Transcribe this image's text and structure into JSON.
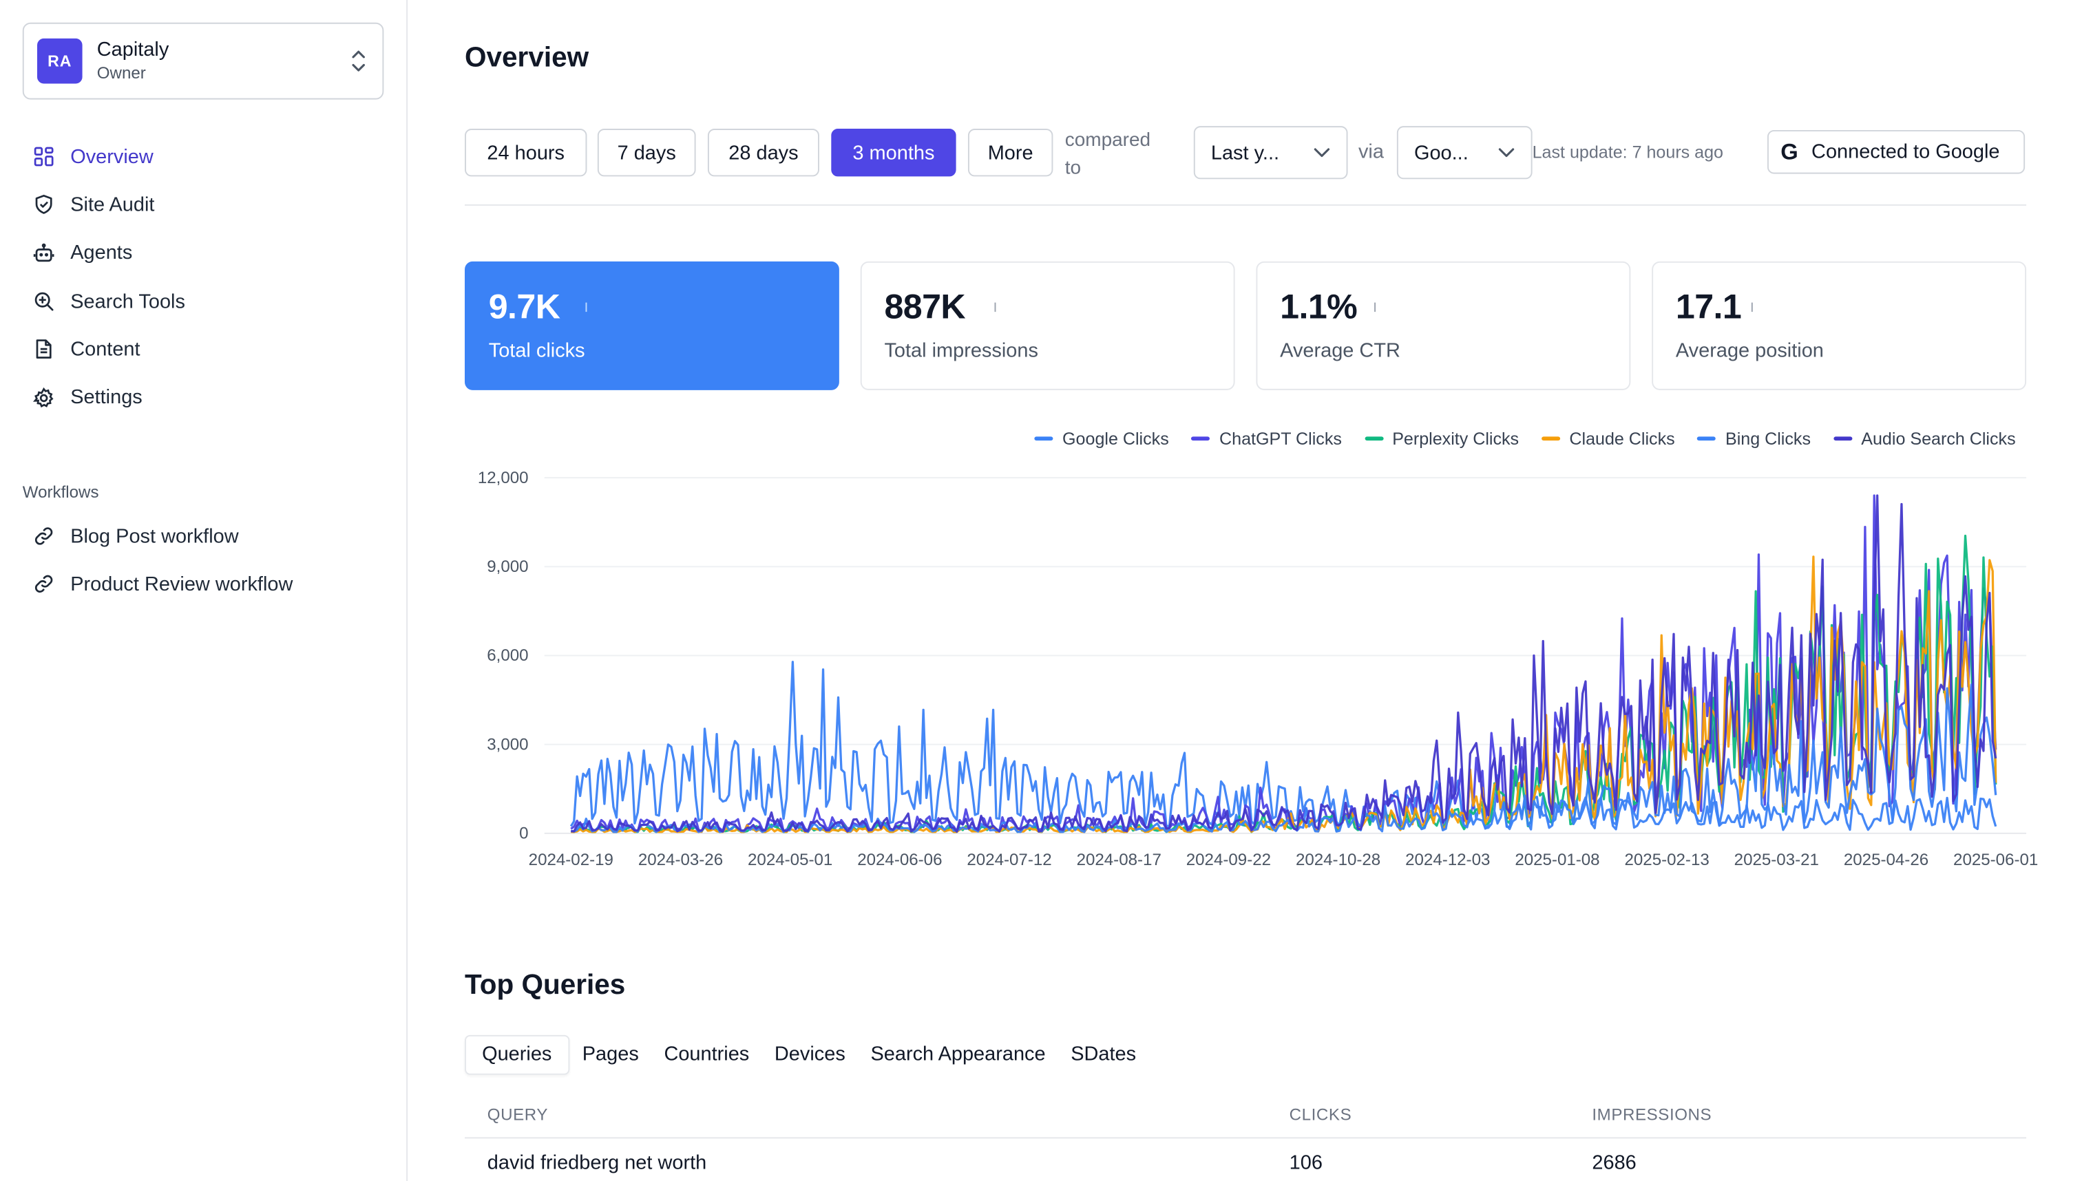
{
  "org": {
    "initials": "RA",
    "name": "Capitaly",
    "role": "Owner"
  },
  "nav": [
    {
      "label": "Overview",
      "icon": "grid-icon"
    },
    {
      "label": "Site Audit",
      "icon": "shield-check-icon"
    },
    {
      "label": "Agents",
      "icon": "robot-icon"
    },
    {
      "label": "Search Tools",
      "icon": "search-zoom-icon"
    },
    {
      "label": "Content",
      "icon": "document-icon"
    },
    {
      "label": "Settings",
      "icon": "gear-icon"
    }
  ],
  "workflows": {
    "title": "Workflows",
    "items": [
      {
        "label": "Blog Post workflow",
        "icon": "link-icon"
      },
      {
        "label": "Product Review workflow",
        "icon": "link-icon"
      }
    ]
  },
  "page": {
    "title": "Overview"
  },
  "toolbar": {
    "ranges": [
      "24 hours",
      "7 days",
      "28 days",
      "3 months",
      "More"
    ],
    "active_range": "3 months",
    "compared_to": "compared to",
    "compare_value": "Last y...",
    "via": "via",
    "source_value": "Goo...",
    "last_update": "Last update: 7 hours ago",
    "connected": "Connected to Google"
  },
  "metrics": [
    {
      "value": "9.7K",
      "label": "Total clicks",
      "active": true
    },
    {
      "value": "887K",
      "label": "Total impressions"
    },
    {
      "value": "1.1%",
      "label": "Average CTR"
    },
    {
      "value": "17.1",
      "label": "Average position"
    }
  ],
  "colors": {
    "accent": "#4f46e5",
    "active_card": "#3b82f6"
  },
  "chart_data": {
    "type": "line",
    "x_tick_labels": [
      "2024-02-19",
      "2024-03-26",
      "2024-05-01",
      "2024-06-06",
      "2024-07-12",
      "2024-08-17",
      "2024-09-22",
      "2024-10-28",
      "2024-12-03",
      "2025-01-08",
      "2025-02-13",
      "2025-03-21",
      "2025-04-26",
      "2025-06-01"
    ],
    "x_range": [
      "2024-02-19",
      "2025-06-01"
    ],
    "ylim": [
      0,
      12000
    ],
    "y_ticks": [
      0,
      3000,
      6000,
      9000,
      12000
    ],
    "grid": true,
    "legend_position": "top-right",
    "series": [
      {
        "name": "Google Clicks",
        "color": "#3b82f6",
        "profile": [
          [
            0,
            1500
          ],
          [
            0.12,
            2500
          ],
          [
            0.35,
            1500
          ],
          [
            0.6,
            900
          ],
          [
            0.8,
            700
          ],
          [
            1,
            800
          ]
        ]
      },
      {
        "name": "ChatGPT Clicks",
        "color": "#4f46e5",
        "profile": [
          [
            0,
            300
          ],
          [
            0.35,
            400
          ],
          [
            0.58,
            800
          ],
          [
            0.72,
            3000
          ],
          [
            0.85,
            5000
          ],
          [
            1,
            6500
          ]
        ]
      },
      {
        "name": "Perplexity Clicks",
        "color": "#10b981",
        "profile": [
          [
            0,
            150
          ],
          [
            0.45,
            200
          ],
          [
            0.62,
            600
          ],
          [
            0.75,
            2500
          ],
          [
            0.9,
            5000
          ],
          [
            1,
            7000
          ]
        ]
      },
      {
        "name": "Claude Clicks",
        "color": "#f59e0b",
        "profile": [
          [
            0,
            100
          ],
          [
            0.45,
            150
          ],
          [
            0.62,
            700
          ],
          [
            0.75,
            2800
          ],
          [
            0.9,
            4800
          ],
          [
            1,
            6000
          ]
        ]
      },
      {
        "name": "Bing Clicks",
        "color": "#3b82f6",
        "profile": [
          [
            0,
            200
          ],
          [
            0.45,
            250
          ],
          [
            0.62,
            500
          ],
          [
            0.8,
            1500
          ],
          [
            1,
            3500
          ]
        ]
      },
      {
        "name": "Audio Search Clicks",
        "color": "#4338ca",
        "profile": [
          [
            0,
            250
          ],
          [
            0.4,
            400
          ],
          [
            0.55,
            700
          ],
          [
            0.7,
            3200
          ],
          [
            0.85,
            4800
          ],
          [
            1,
            6000
          ]
        ]
      }
    ]
  },
  "queries": {
    "title": "Top Queries",
    "tabs": [
      "Queries",
      "Pages",
      "Countries",
      "Devices",
      "Search Appearance",
      "SDates"
    ],
    "columns": [
      "QUERY",
      "CLICKS",
      "IMPRESSIONS"
    ],
    "rows": [
      {
        "query": "david friedberg net worth",
        "clicks": "106",
        "impressions": "2686"
      }
    ]
  }
}
